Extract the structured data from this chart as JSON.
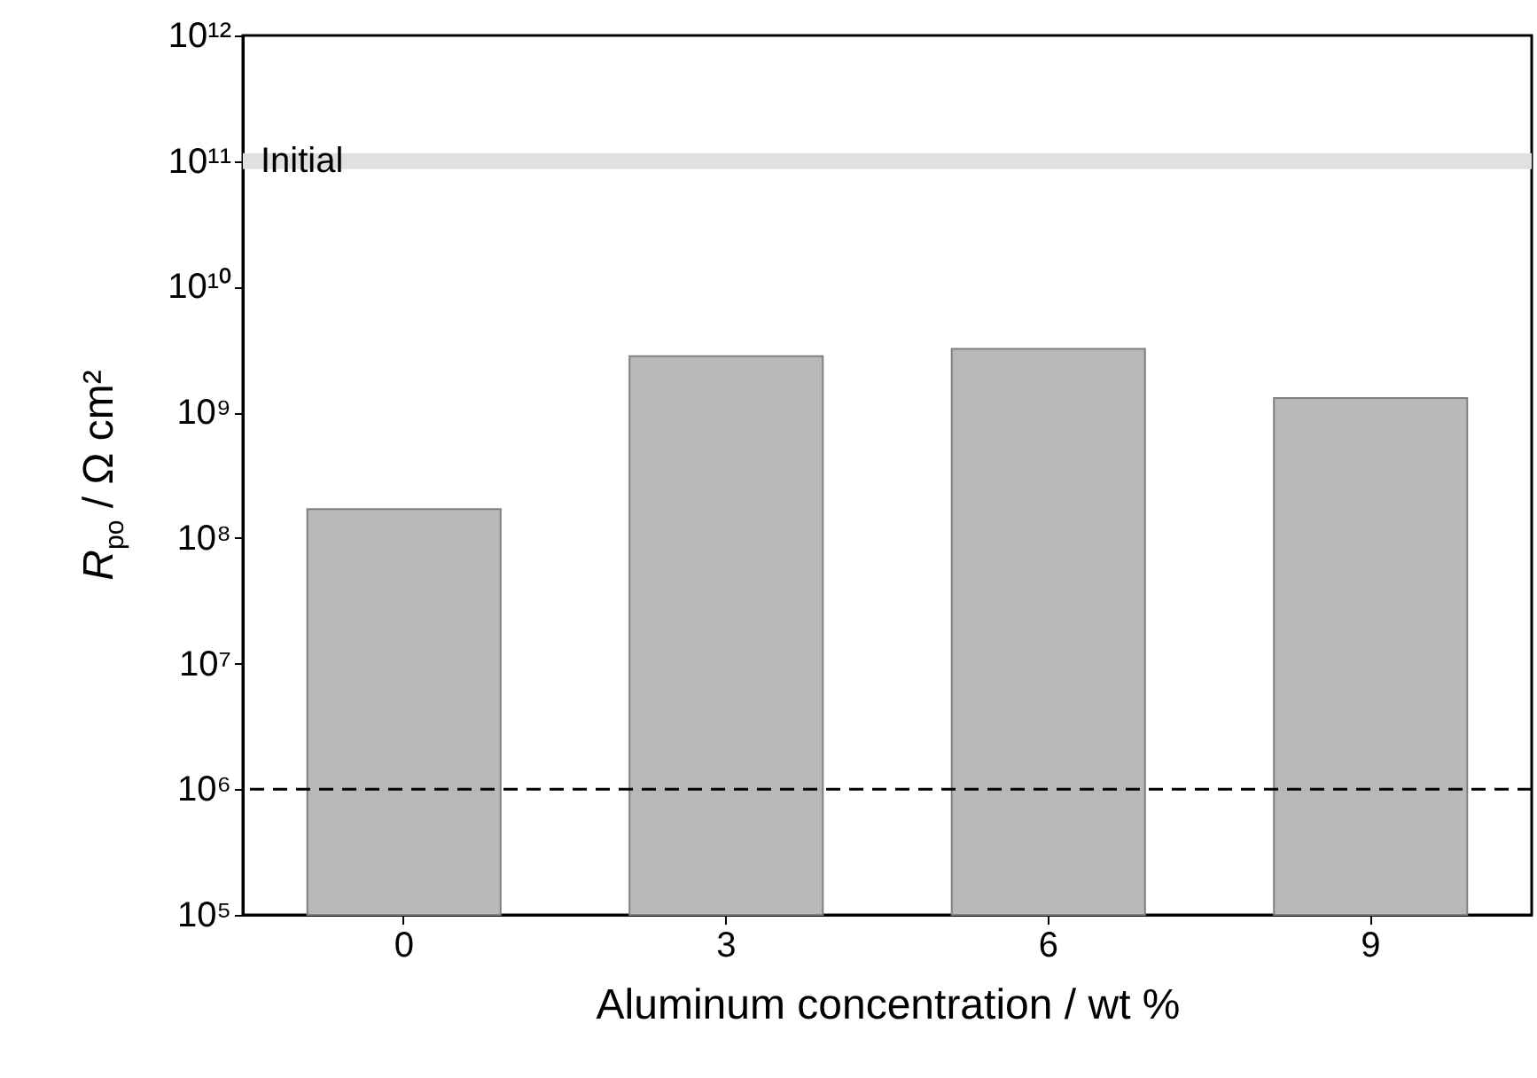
{
  "chart_data": {
    "type": "bar",
    "xlabel": "Aluminum concentration / wt %",
    "ylabel": "R$_{po}$ / Ω cm²",
    "categories": [
      "0",
      "3",
      "6",
      "9"
    ],
    "values": [
      170000000.0,
      2800000000.0,
      3200000000.0,
      1300000000.0
    ],
    "color": "#b8b8b8",
    "log": true,
    "ylim": [
      100000.0,
      1000000000000.0
    ],
    "yticks": [
      {
        "value": 100000.0,
        "label": "10⁵"
      },
      {
        "value": 1000000.0,
        "label": "10⁶"
      },
      {
        "value": 10000000.0,
        "label": "10⁷"
      },
      {
        "value": 100000000.0,
        "label": "10⁸"
      },
      {
        "value": 1000000000.0,
        "label": "10⁹"
      },
      {
        "value": 10000000000.0,
        "label": "10¹⁰"
      },
      {
        "value": 100000000000.0,
        "label": "10¹¹"
      },
      {
        "value": 1000000000000.0,
        "label": "10¹²"
      }
    ],
    "ref_lines": [
      {
        "axis": "y",
        "value": 100000000000.0,
        "label": "Initial",
        "color": "#e0e0e0",
        "line_style": "solid"
      },
      {
        "axis": "y",
        "value": 1000000.0,
        "color": "#000000",
        "line_style": "dashed"
      }
    ],
    "grid": false
  }
}
